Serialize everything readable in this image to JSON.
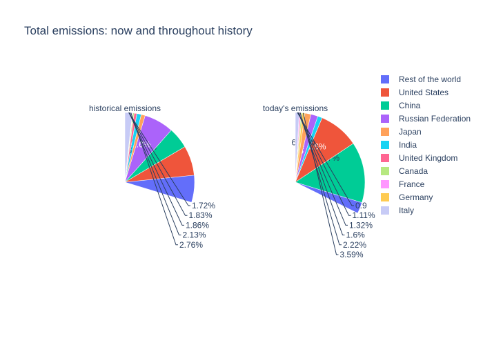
{
  "chart_data": {
    "type": "pie",
    "title": "Total emissions: now and throughout history",
    "legend_position": "right",
    "labels": [
      "Rest of the world",
      "United States",
      "China",
      "Russian Federation",
      "Japan",
      "India",
      "United Kingdom",
      "Canada",
      "France",
      "Germany",
      "Italy"
    ],
    "colors": {
      "Rest of the world": "#636efa",
      "United States": "#ef553b",
      "China": "#00cc96",
      "Russian Federation": "#ab63fa",
      "Japan": "#ffa15a",
      "India": "#19d3f3",
      "United Kingdom": "#ff6692",
      "Canada": "#b6e880",
      "France": "#ff97ff",
      "Germany": "#fecb52",
      "Italy": "#c7cbf6"
    },
    "pies": [
      {
        "name": "historical emissions",
        "slices": [
          {
            "label": "Rest of the world",
            "value": 29.7,
            "text": "29.7%"
          },
          {
            "label": "United States",
            "value": 23.4,
            "text": "23.4%"
          },
          {
            "label": "China",
            "value": 16.5,
            "text": "16.5%"
          },
          {
            "label": "Russian Federation",
            "value": 11.6,
            "text": "11.6%"
          },
          {
            "label": "Japan",
            "value": 4.71,
            "text": "4.71%"
          },
          {
            "label": "India",
            "value": 3.78,
            "text": "3.78%"
          },
          {
            "label": "United Kingdom",
            "value": 2.76,
            "text": "2.76%"
          },
          {
            "label": "Canada",
            "value": 2.13,
            "text": "2.13%"
          },
          {
            "label": "France",
            "value": 1.86,
            "text": "1.86%"
          },
          {
            "label": "Germany",
            "value": 1.83,
            "text": "1.83%"
          },
          {
            "label": "Italy",
            "value": 1.72,
            "text": "1.72%"
          }
        ]
      },
      {
        "name": "today's emissions",
        "slices": [
          {
            "label": "Rest of the world",
            "value": 32.3,
            "text": "32.3%"
          },
          {
            "label": "China",
            "value": 29.7,
            "text": "29.7%"
          },
          {
            "label": "United States",
            "value": 15.6,
            "text": "15.6%"
          },
          {
            "label": "India",
            "value": 6.27,
            "text": "6.27%"
          },
          {
            "label": "Russian Federation",
            "value": 5.23,
            "text": "5.23%"
          },
          {
            "label": "Japan",
            "value": 3.59,
            "text": "3.59%"
          },
          {
            "label": "Germany",
            "value": 2.22,
            "text": "2.22%"
          },
          {
            "label": "Canada",
            "value": 1.6,
            "text": "1.6%"
          },
          {
            "label": "United Kingdom",
            "value": 1.32,
            "text": "1.32%"
          },
          {
            "label": "France",
            "value": 1.11,
            "text": "1.11%"
          },
          {
            "label": "Italy",
            "value": 0.9,
            "text": "0.9"
          }
        ]
      }
    ]
  }
}
